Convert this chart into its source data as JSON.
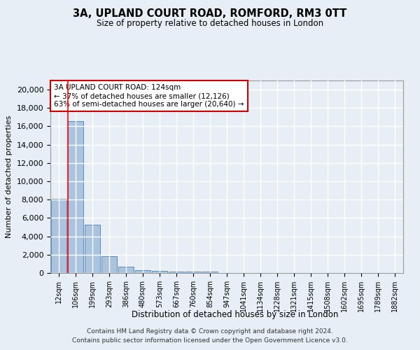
{
  "title1": "3A, UPLAND COURT ROAD, ROMFORD, RM3 0TT",
  "title2": "Size of property relative to detached houses in London",
  "xlabel": "Distribution of detached houses by size in London",
  "ylabel": "Number of detached properties",
  "footer1": "Contains HM Land Registry data © Crown copyright and database right 2024.",
  "footer2": "Contains public sector information licensed under the Open Government Licence v3.0.",
  "bin_labels": [
    "12sqm",
    "106sqm",
    "199sqm",
    "293sqm",
    "386sqm",
    "480sqm",
    "573sqm",
    "667sqm",
    "760sqm",
    "854sqm",
    "947sqm",
    "1041sqm",
    "1134sqm",
    "1228sqm",
    "1321sqm",
    "1415sqm",
    "1508sqm",
    "1602sqm",
    "1695sqm",
    "1789sqm",
    "1882sqm"
  ],
  "bar_values": [
    8100,
    16600,
    5300,
    1850,
    700,
    300,
    200,
    180,
    160,
    140,
    0,
    0,
    0,
    0,
    0,
    0,
    0,
    0,
    0,
    0,
    0
  ],
  "bar_color": "#aac4e0",
  "bar_edge_color": "#5b8db8",
  "background_color": "#e8eef5",
  "grid_color": "#ffffff",
  "red_line_index": 1,
  "annotation_text": "3A UPLAND COURT ROAD: 124sqm\n← 37% of detached houses are smaller (12,126)\n63% of semi-detached houses are larger (20,640) →",
  "annotation_box_color": "#ffffff",
  "annotation_box_edge_color": "#cc0000",
  "ylim": [
    0,
    21000
  ],
  "yticks": [
    0,
    2000,
    4000,
    6000,
    8000,
    10000,
    12000,
    14000,
    16000,
    18000,
    20000
  ]
}
